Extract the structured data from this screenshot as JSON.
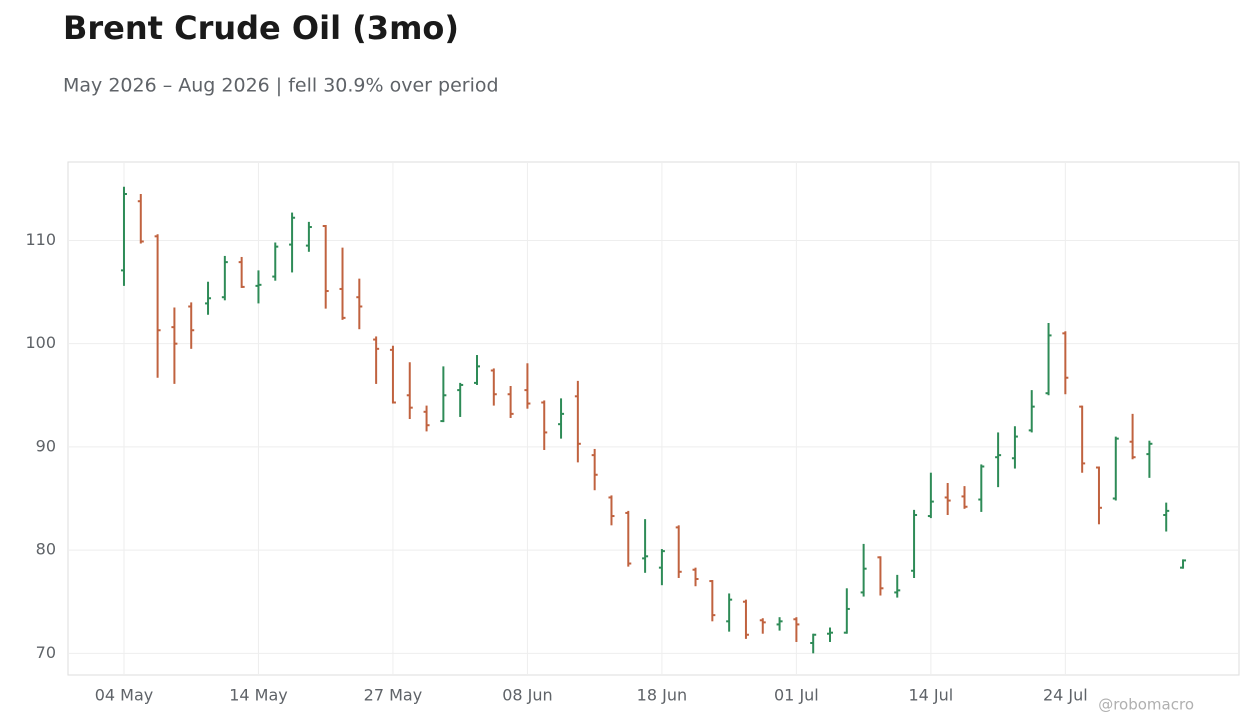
{
  "chart_data": {
    "type": "ohlc",
    "title": "Brent Crude Oil (3mo)",
    "subtitle": "May 2026 – Aug 2026 | fell 30.9% over period",
    "credit": "@robomacro",
    "categories": [
      "04 May",
      null,
      null,
      null,
      null,
      null,
      null,
      null,
      "14 May",
      null,
      null,
      null,
      null,
      null,
      null,
      null,
      "27 May",
      null,
      null,
      null,
      null,
      null,
      null,
      null,
      "08 Jun",
      null,
      null,
      null,
      null,
      null,
      null,
      null,
      "18 Jun",
      null,
      null,
      null,
      null,
      null,
      null,
      null,
      "01 Jul",
      null,
      null,
      null,
      null,
      null,
      null,
      null,
      "14 Jul",
      null,
      null,
      null,
      null,
      null,
      null,
      null,
      "24 Jul",
      null,
      null,
      null,
      null,
      null,
      null,
      null
    ],
    "open": [
      107.1,
      113.8,
      110.4,
      101.6,
      103.6,
      103.9,
      104.5,
      107.9,
      105.6,
      106.5,
      109.6,
      109.5,
      111.4,
      105.3,
      104.5,
      100.4,
      99.4,
      95.0,
      93.4,
      92.5,
      95.5,
      96.2,
      97.4,
      95.1,
      95.5,
      94.3,
      92.2,
      94.9,
      89.2,
      85.1,
      83.6,
      79.2,
      78.3,
      82.2,
      78.1,
      77.0,
      73.1,
      75.0,
      73.2,
      72.8,
      73.3,
      71.0,
      71.9,
      72.0,
      75.9,
      79.3,
      75.9,
      78.0,
      83.3,
      85.1,
      85.2,
      84.9,
      89.0,
      88.9,
      91.6,
      95.2,
      101.0,
      93.9,
      88.0,
      85.0,
      90.5,
      89.3,
      83.4,
      78.3
    ],
    "high": [
      115.2,
      114.5,
      110.6,
      103.5,
      104.0,
      106.0,
      108.5,
      108.4,
      107.1,
      109.8,
      112.7,
      111.8,
      111.5,
      109.3,
      106.3,
      100.7,
      99.8,
      98.2,
      94.0,
      97.8,
      96.2,
      98.9,
      97.6,
      95.9,
      98.1,
      94.5,
      94.7,
      96.4,
      89.8,
      85.3,
      83.8,
      83.0,
      80.1,
      82.4,
      78.3,
      77.1,
      75.8,
      75.2,
      73.4,
      73.5,
      73.5,
      71.9,
      72.5,
      76.3,
      80.6,
      79.4,
      77.6,
      83.9,
      87.5,
      86.5,
      86.2,
      88.3,
      91.4,
      92.0,
      95.5,
      102.0,
      101.2,
      94.0,
      88.1,
      91.0,
      93.2,
      90.6,
      84.6,
      79.1
    ],
    "low": [
      105.6,
      109.7,
      96.7,
      96.1,
      99.5,
      102.8,
      104.2,
      105.4,
      103.9,
      106.1,
      106.9,
      108.9,
      103.4,
      102.3,
      101.4,
      96.1,
      94.2,
      92.7,
      91.5,
      92.4,
      92.9,
      96.0,
      94.0,
      92.8,
      93.7,
      89.7,
      90.8,
      88.5,
      85.8,
      82.4,
      78.4,
      77.8,
      76.6,
      77.3,
      76.5,
      73.1,
      72.1,
      71.4,
      71.9,
      72.2,
      71.1,
      70.0,
      71.1,
      71.9,
      75.5,
      75.6,
      75.4,
      77.3,
      83.1,
      83.4,
      84.0,
      83.7,
      86.1,
      87.9,
      91.4,
      95.0,
      95.1,
      87.5,
      82.5,
      84.8,
      88.8,
      87.0,
      81.8,
      78.2
    ],
    "close": [
      114.5,
      109.9,
      101.3,
      100.0,
      101.3,
      104.4,
      107.9,
      105.5,
      105.7,
      109.4,
      112.2,
      111.3,
      105.1,
      102.5,
      103.6,
      99.5,
      94.3,
      93.8,
      92.1,
      95.0,
      96.0,
      97.8,
      95.1,
      93.2,
      94.2,
      91.4,
      93.2,
      90.3,
      87.3,
      83.3,
      78.7,
      79.4,
      79.9,
      77.9,
      77.2,
      73.7,
      75.2,
      71.8,
      73.0,
      73.1,
      72.8,
      71.8,
      72.0,
      74.3,
      78.2,
      76.3,
      76.1,
      83.4,
      84.7,
      84.8,
      84.2,
      88.1,
      89.2,
      91.0,
      93.9,
      100.8,
      96.7,
      88.4,
      84.1,
      90.8,
      89.0,
      90.3,
      83.8,
      79.0
    ],
    "up_color": "#2e8b57",
    "down_color": "#c0623f",
    "ylim": [
      67.9,
      117.6
    ],
    "yticks": [
      70,
      80,
      90,
      100,
      110
    ],
    "grid": true
  }
}
